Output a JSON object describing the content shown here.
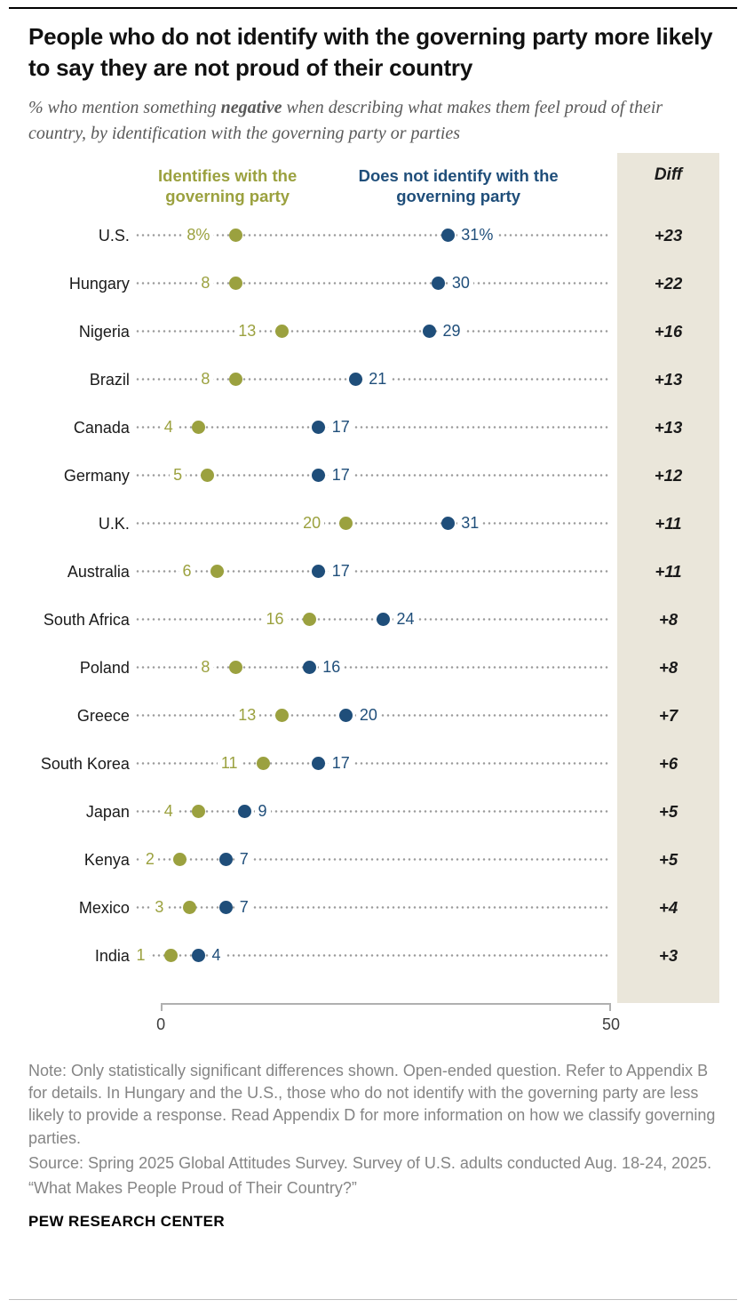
{
  "header": {
    "title": "People who do not identify with the governing party more likely to say they are not proud of their country",
    "subtitle_prefix": "% who mention something ",
    "subtitle_bold": "negative",
    "subtitle_suffix": " when describing what makes them feel proud of their country, by identification with the governing party or parties"
  },
  "colors": {
    "identifies": "#9ba13f",
    "not_identifies": "#1f4e7a",
    "diff_bg": "#eae6da",
    "leader": "#9a9a9a",
    "axis": "#b0b0b0",
    "note": "#858585"
  },
  "chart_data": {
    "type": "dot-plot",
    "title": "People who do not identify with the governing party more likely to say they are not proud of their country",
    "xlabel": "",
    "xlim": [
      0,
      50
    ],
    "x_tick_labels": [
      "0",
      "50"
    ],
    "diff_header": "Diff",
    "legend": [
      {
        "name": "identifies",
        "label": "Identifies with the governing party",
        "color": "#9ba13f"
      },
      {
        "name": "not_identifies",
        "label": "Does not identify with the governing party",
        "color": "#1f4e7a"
      }
    ],
    "rows": [
      {
        "country": "U.S.",
        "identifies": 8,
        "identifies_label": "8%",
        "not_identifies": 31,
        "not_identifies_label": "31%",
        "diff": "+23"
      },
      {
        "country": "Hungary",
        "identifies": 8,
        "identifies_label": "8",
        "not_identifies": 30,
        "not_identifies_label": "30",
        "diff": "+22"
      },
      {
        "country": "Nigeria",
        "identifies": 13,
        "identifies_label": "13",
        "not_identifies": 29,
        "not_identifies_label": "29",
        "diff": "+16"
      },
      {
        "country": "Brazil",
        "identifies": 8,
        "identifies_label": "8",
        "not_identifies": 21,
        "not_identifies_label": "21",
        "diff": "+13"
      },
      {
        "country": "Canada",
        "identifies": 4,
        "identifies_label": "4",
        "not_identifies": 17,
        "not_identifies_label": "17",
        "diff": "+13"
      },
      {
        "country": "Germany",
        "identifies": 5,
        "identifies_label": "5",
        "not_identifies": 17,
        "not_identifies_label": "17",
        "diff": "+12"
      },
      {
        "country": "U.K.",
        "identifies": 20,
        "identifies_label": "20",
        "not_identifies": 31,
        "not_identifies_label": "31",
        "diff": "+11"
      },
      {
        "country": "Australia",
        "identifies": 6,
        "identifies_label": "6",
        "not_identifies": 17,
        "not_identifies_label": "17",
        "diff": "+11"
      },
      {
        "country": "South Africa",
        "identifies": 16,
        "identifies_label": "16",
        "not_identifies": 24,
        "not_identifies_label": "24",
        "diff": "+8"
      },
      {
        "country": "Poland",
        "identifies": 8,
        "identifies_label": "8",
        "not_identifies": 16,
        "not_identifies_label": "16",
        "diff": "+8"
      },
      {
        "country": "Greece",
        "identifies": 13,
        "identifies_label": "13",
        "not_identifies": 20,
        "not_identifies_label": "20",
        "diff": "+7"
      },
      {
        "country": "South Korea",
        "identifies": 11,
        "identifies_label": "11",
        "not_identifies": 17,
        "not_identifies_label": "17",
        "diff": "+6"
      },
      {
        "country": "Japan",
        "identifies": 4,
        "identifies_label": "4",
        "not_identifies": 9,
        "not_identifies_label": "9",
        "diff": "+5"
      },
      {
        "country": "Kenya",
        "identifies": 2,
        "identifies_label": "2",
        "not_identifies": 7,
        "not_identifies_label": "7",
        "diff": "+5"
      },
      {
        "country": "Mexico",
        "identifies": 3,
        "identifies_label": "3",
        "not_identifies": 7,
        "not_identifies_label": "7",
        "diff": "+4"
      },
      {
        "country": "India",
        "identifies": 1,
        "identifies_label": "1",
        "not_identifies": 4,
        "not_identifies_label": "4",
        "diff": "+3"
      }
    ]
  },
  "footer": {
    "note": "Note: Only statistically significant differences shown. Open-ended question. Refer to Appendix B for details. In Hungary and the U.S., those who do not identify with the governing party are less likely to provide a response. Read Appendix D for more information on how we classify governing parties.",
    "source": "Source: Spring 2025 Global Attitudes Survey. Survey of U.S. adults conducted Aug. 18-24, 2025.",
    "report": "“What Makes People Proud of Their Country?”",
    "brand": "PEW RESEARCH CENTER"
  }
}
